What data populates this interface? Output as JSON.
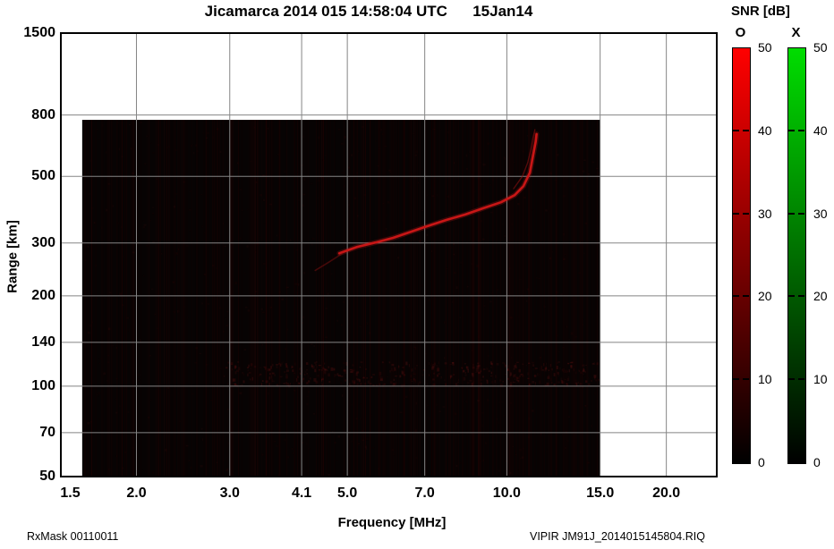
{
  "chart_data": {
    "type": "heatmap",
    "title": "Jicamarca 2014 015 14:58:04 UTC      15Jan14",
    "xlabel": "Frequency [MHz]",
    "ylabel": "Range [km]",
    "x_scale": "log",
    "y_scale": "log",
    "xlim": [
      1.44,
      24.9
    ],
    "ylim": [
      50,
      1500
    ],
    "x_ticks": [
      1.5,
      2.0,
      3.0,
      4.1,
      5.0,
      7.0,
      10.0,
      15.0,
      20.0
    ],
    "x_tick_labels": [
      "1.5",
      "2.0",
      "3.0",
      "4.1",
      "5.0",
      "7.0",
      "10.0",
      "15.0",
      "20.0"
    ],
    "y_ticks": [
      50,
      70,
      100,
      140,
      200,
      300,
      500,
      800,
      1500
    ],
    "y_tick_labels": [
      "50",
      "70",
      "100",
      "140",
      "200",
      "300",
      "500",
      "800",
      "1500"
    ],
    "grid": true,
    "grid_color": "#858585",
    "data_region": {
      "freq_mhz_min": 1.58,
      "freq_mhz_max": 15.0,
      "range_km_min": 50,
      "range_km_max": 771,
      "background": "#070303"
    },
    "series": [
      {
        "name": "O-mode echo trace",
        "color": "#c81616",
        "width": 2.6,
        "opacity": 1,
        "points_freq_mhz_range_km": [
          [
            4.83,
            277
          ],
          [
            5.22,
            291
          ],
          [
            5.65,
            301
          ],
          [
            6.1,
            312
          ],
          [
            6.6,
            327
          ],
          [
            7.0,
            339
          ],
          [
            7.7,
            358
          ],
          [
            8.35,
            373
          ],
          [
            9.0,
            391
          ],
          [
            9.75,
            410
          ],
          [
            10.35,
            433
          ],
          [
            10.75,
            464
          ],
          [
            11.05,
            514
          ],
          [
            11.2,
            582
          ],
          [
            11.34,
            654
          ],
          [
            11.38,
            691
          ]
        ]
      },
      {
        "name": "echo trace faint branch",
        "color": "#911010",
        "width": 1.4,
        "opacity": 0.55,
        "points_freq_mhz_range_km": [
          [
            10.3,
            455
          ],
          [
            10.7,
            500
          ],
          [
            10.95,
            555
          ],
          [
            11.1,
            615
          ],
          [
            11.2,
            670
          ],
          [
            11.3,
            715
          ]
        ]
      },
      {
        "name": "echo trace lead-in",
        "color": "#8d1212",
        "width": 1.6,
        "opacity": 0.45,
        "points_freq_mhz_range_km": [
          [
            4.35,
            243
          ],
          [
            4.6,
            258
          ],
          [
            4.9,
            277
          ]
        ]
      }
    ]
  },
  "colorbar_section": {
    "title": "SNR [dB]",
    "bars": [
      {
        "label": "O",
        "top_color": "#ff0000",
        "bottom_color": "#000000",
        "min": 0,
        "max": 50,
        "tick_labels": [
          "0",
          "10",
          "20",
          "30",
          "40",
          "50"
        ]
      },
      {
        "label": "X",
        "top_color": "#00dd00",
        "bottom_color": "#000000",
        "min": 0,
        "max": 50,
        "tick_labels": [
          "0",
          "10",
          "20",
          "30",
          "40",
          "50"
        ]
      }
    ]
  },
  "footer": {
    "left": "RxMask 00110011",
    "right": "VIPIR  JM91J_2014015145804.RIQ"
  }
}
